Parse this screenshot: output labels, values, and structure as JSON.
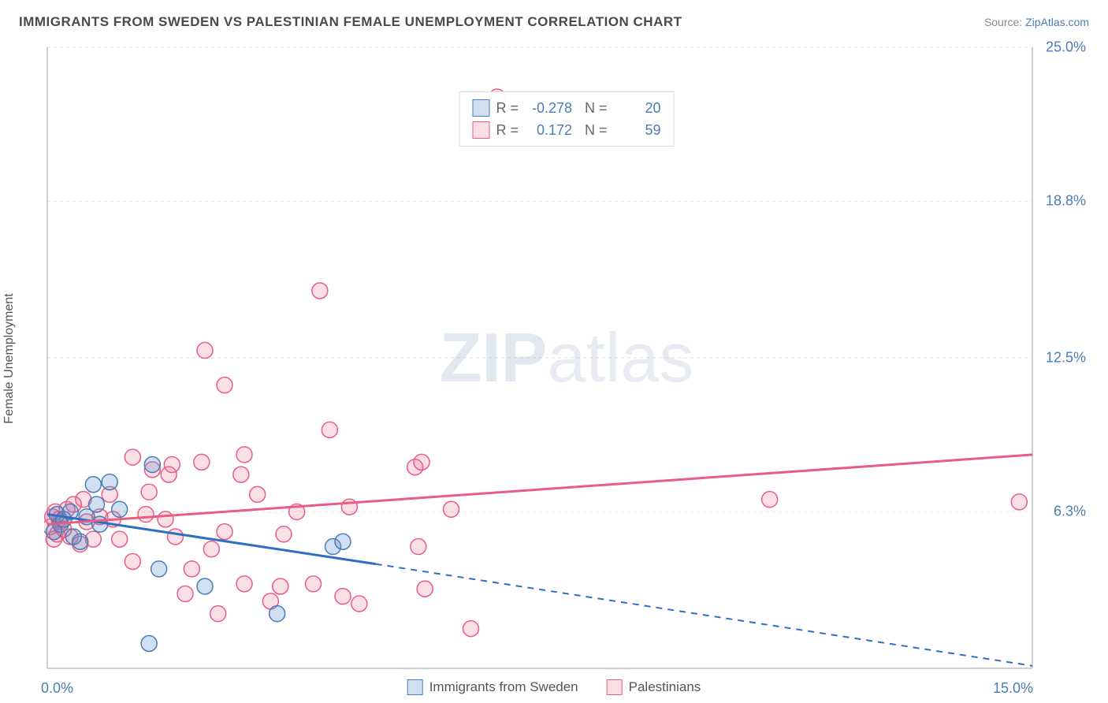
{
  "header": {
    "title": "IMMIGRANTS FROM SWEDEN VS PALESTINIAN FEMALE UNEMPLOYMENT CORRELATION CHART",
    "source_prefix": "Source: ",
    "source_link": "ZipAtlas.com"
  },
  "axes": {
    "ylabel": "Female Unemployment",
    "xlim": [
      0,
      15
    ],
    "ylim": [
      0,
      25
    ],
    "xticks": [
      {
        "v": 0,
        "label": "0.0%"
      },
      {
        "v": 15,
        "label": "15.0%"
      }
    ],
    "yticks": [
      {
        "v": 6.3,
        "label": "6.3%"
      },
      {
        "v": 12.5,
        "label": "12.5%"
      },
      {
        "v": 18.8,
        "label": "18.8%"
      },
      {
        "v": 25.0,
        "label": "25.0%"
      }
    ],
    "grid_color": "#e2e2e2",
    "axis_color": "#bfbfbf",
    "tick_label_color": "#4a7db5"
  },
  "watermark": {
    "bold": "ZIP",
    "rest": "atlas"
  },
  "legend_stats": [
    {
      "series": "sweden",
      "R": "-0.278",
      "N": "20"
    },
    {
      "series": "palestinian",
      "R": "0.172",
      "N": "59"
    }
  ],
  "bottom_legend": [
    {
      "series": "sweden",
      "label": "Immigrants from Sweden"
    },
    {
      "series": "palestinian",
      "label": "Palestinians"
    }
  ],
  "series": {
    "sweden": {
      "fill": "rgba(90,140,210,0.28)",
      "stroke": "#4a7db5",
      "line_color": "#2f6fc2",
      "marker_r": 10,
      "points": [
        [
          0.1,
          5.5
        ],
        [
          0.15,
          6.2
        ],
        [
          0.2,
          5.8
        ],
        [
          0.25,
          6.0
        ],
        [
          0.35,
          6.3
        ],
        [
          0.5,
          5.1
        ],
        [
          0.7,
          7.4
        ],
        [
          0.75,
          6.6
        ],
        [
          0.8,
          5.8
        ],
        [
          0.95,
          7.5
        ],
        [
          1.6,
          8.2
        ],
        [
          1.7,
          4.0
        ],
        [
          1.55,
          1.0
        ],
        [
          2.4,
          3.3
        ],
        [
          3.5,
          2.2
        ],
        [
          4.35,
          4.9
        ],
        [
          4.5,
          5.1
        ],
        [
          0.4,
          5.3
        ],
        [
          0.6,
          6.1
        ],
        [
          1.1,
          6.4
        ]
      ],
      "trend": {
        "x1": 0,
        "y1": 6.2,
        "x2": 5.0,
        "y2": 4.2,
        "dash_x2": 15.0,
        "dash_y2": 0.1
      }
    },
    "palestinian": {
      "fill": "rgba(235,110,140,0.22)",
      "stroke": "#e85d84",
      "line_color": "#e85d84",
      "marker_r": 10,
      "points": [
        [
          0.05,
          5.7
        ],
        [
          0.08,
          6.1
        ],
        [
          0.1,
          5.2
        ],
        [
          0.12,
          6.3
        ],
        [
          0.15,
          5.4
        ],
        [
          0.18,
          6.0
        ],
        [
          0.2,
          5.9
        ],
        [
          0.25,
          5.6
        ],
        [
          0.3,
          6.4
        ],
        [
          0.35,
          5.3
        ],
        [
          0.4,
          6.6
        ],
        [
          0.5,
          5.0
        ],
        [
          0.55,
          6.8
        ],
        [
          0.6,
          5.9
        ],
        [
          0.7,
          5.2
        ],
        [
          0.8,
          6.1
        ],
        [
          0.95,
          7.0
        ],
        [
          1.0,
          6.0
        ],
        [
          1.1,
          5.2
        ],
        [
          1.3,
          4.3
        ],
        [
          1.3,
          8.5
        ],
        [
          1.5,
          6.2
        ],
        [
          1.55,
          7.1
        ],
        [
          1.6,
          8.0
        ],
        [
          1.8,
          6.0
        ],
        [
          1.85,
          7.8
        ],
        [
          1.9,
          8.2
        ],
        [
          1.95,
          5.3
        ],
        [
          2.1,
          3.0
        ],
        [
          2.2,
          4.0
        ],
        [
          2.35,
          8.3
        ],
        [
          2.4,
          12.8
        ],
        [
          2.5,
          4.8
        ],
        [
          2.6,
          2.2
        ],
        [
          2.7,
          5.5
        ],
        [
          2.7,
          11.4
        ],
        [
          2.95,
          7.8
        ],
        [
          3.0,
          3.4
        ],
        [
          3.0,
          8.6
        ],
        [
          3.2,
          7.0
        ],
        [
          3.4,
          2.7
        ],
        [
          3.55,
          3.3
        ],
        [
          3.6,
          5.4
        ],
        [
          3.8,
          6.3
        ],
        [
          4.05,
          3.4
        ],
        [
          4.15,
          15.2
        ],
        [
          4.3,
          9.6
        ],
        [
          4.5,
          2.9
        ],
        [
          4.6,
          6.5
        ],
        [
          4.75,
          2.6
        ],
        [
          5.6,
          8.1
        ],
        [
          5.65,
          4.9
        ],
        [
          5.7,
          8.3
        ],
        [
          5.75,
          3.2
        ],
        [
          6.15,
          6.4
        ],
        [
          6.45,
          1.6
        ],
        [
          6.85,
          23.0
        ],
        [
          11.0,
          6.8
        ],
        [
          14.8,
          6.7
        ]
      ],
      "trend": {
        "x1": 0,
        "y1": 5.8,
        "x2": 15.0,
        "y2": 8.6
      }
    }
  },
  "colors": {
    "title": "#4a4a4a",
    "source": "#888888",
    "background": "#ffffff"
  }
}
